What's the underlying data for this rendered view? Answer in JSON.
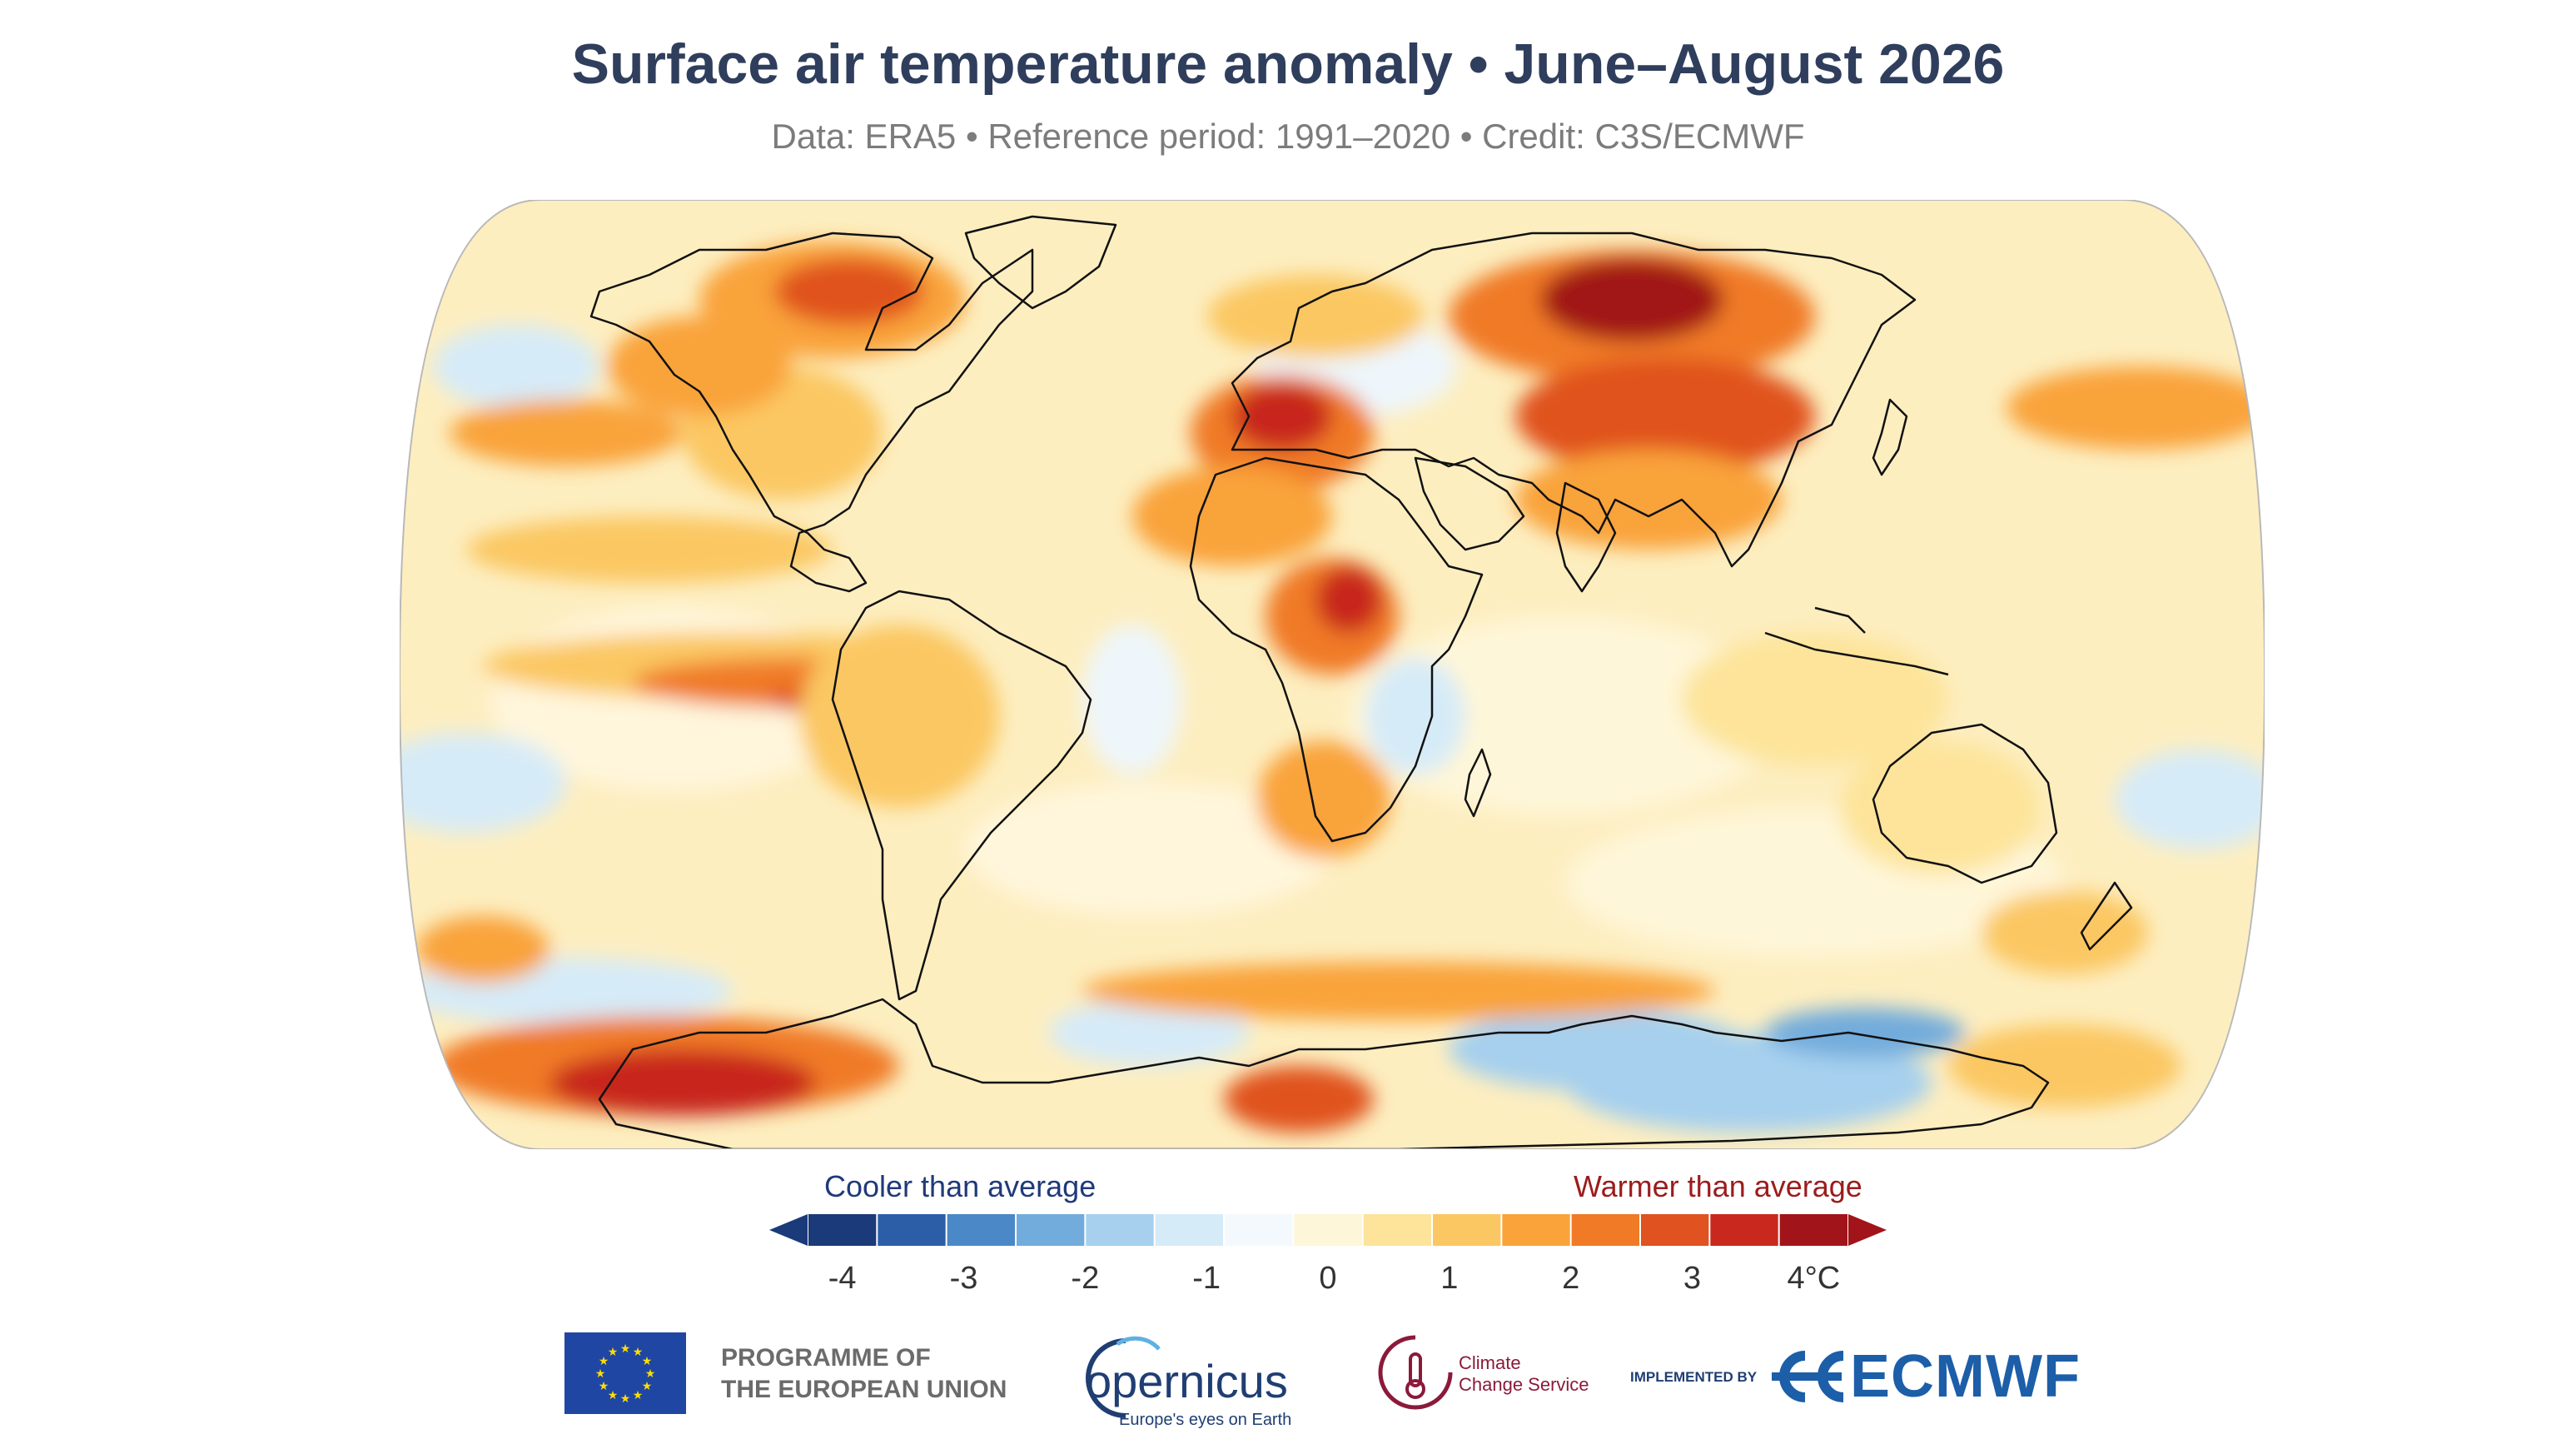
{
  "title": "Surface air temperature anomaly • June–August 2026",
  "subtitle": "Data: ERA5 • Reference period: 1991–2020 • Credit: C3S/ECMWF",
  "legend": {
    "cool_label": "Cooler than average",
    "warm_label": "Warmer than average",
    "ticks": [
      "-4",
      "-3",
      "-2",
      "-1",
      "0",
      "1",
      "2",
      "3",
      "4°C"
    ],
    "range": [
      -4,
      4
    ],
    "colors": [
      "#1a3a7a",
      "#2c5ea8",
      "#4a88c8",
      "#72acdc",
      "#a6d0ee",
      "#d6ebf8",
      "#f4f9fd",
      "#fef6d8",
      "#fde49a",
      "#fbc762",
      "#f9a33a",
      "#f07a26",
      "#e0521f",
      "#c8281e",
      "#a11419"
    ]
  },
  "logos": {
    "eu_line1": "PROGRAMME OF",
    "eu_line2": "THE EUROPEAN UNION",
    "copernicus": "opernicus",
    "copernicus_tag": "Europe's eyes on Earth",
    "c3s_line1": "Climate",
    "c3s_line2": "Change Service",
    "implemented_by": "IMPLEMENTED BY",
    "ecmwf": "ECMWF"
  },
  "colors": {
    "title": "#2f3e5c",
    "subtitle": "#7c7c7c",
    "cool_text": "#1f3a7a",
    "warm_text": "#9b1c1c",
    "eu_blue": "#1f46a3",
    "eu_star": "#ffdd00",
    "copernicus": "#1f3e73",
    "ecmwf": "#1c5ea8",
    "c3s": "#8b1a3a"
  },
  "map": {
    "projection": "Robinson",
    "variable": "surface air temperature anomaly (°C)"
  }
}
